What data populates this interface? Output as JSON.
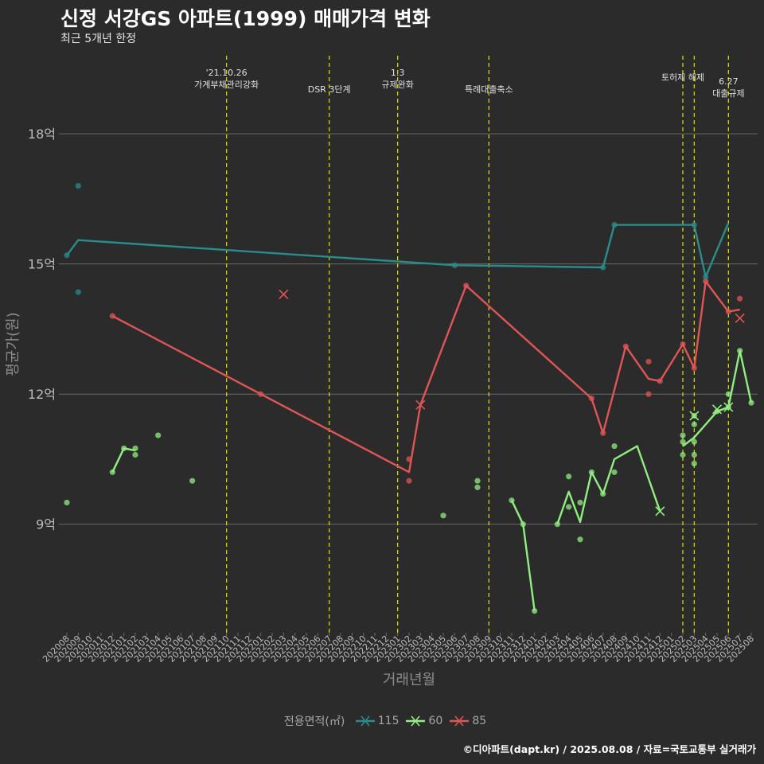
{
  "title": "신정 서강GS 아파트(1999) 매매가격 변화",
  "subtitle": "최근 5개년 한정",
  "caption": "©디아파트(dapt.kr) / 2025.08.08 / 자료=국토교통부 실거래가",
  "legend_title": "전용면적(㎡)",
  "colors": {
    "background": "#2b2b2b",
    "grid": "#6a6a6a",
    "axis_text": "#bdbdbd",
    "axis_title": "#8c8c8c",
    "event_line": "#d4d400",
    "event_text": "#e0e0e0"
  },
  "chart_data": {
    "type": "line",
    "xlabel": "거래년월",
    "ylabel": "평균가(원)",
    "ylim": [
      6.5,
      19.8
    ],
    "y_ticks": [
      {
        "value": 9,
        "label": "9억"
      },
      {
        "value": 12,
        "label": "12억"
      },
      {
        "value": 15,
        "label": "15억"
      },
      {
        "value": 18,
        "label": "18억"
      }
    ],
    "categories": [
      "202008",
      "202009",
      "202010",
      "202011",
      "202012",
      "202101",
      "202102",
      "202103",
      "202104",
      "202105",
      "202106",
      "202107",
      "202108",
      "202109",
      "202110",
      "202111",
      "202112",
      "202201",
      "202202",
      "202203",
      "202204",
      "202205",
      "202206",
      "202207",
      "202208",
      "202209",
      "202210",
      "202211",
      "202212",
      "202301",
      "202302",
      "202303",
      "202304",
      "202305",
      "202306",
      "202307",
      "202308",
      "202309",
      "202310",
      "202311",
      "202312",
      "202401",
      "202402",
      "202403",
      "202404",
      "202405",
      "202406",
      "202407",
      "202408",
      "202409",
      "202410",
      "202411",
      "202412",
      "202501",
      "202502",
      "202503",
      "202504",
      "202505",
      "202506",
      "202507",
      "202508"
    ],
    "events": [
      {
        "x": "202110",
        "label": "'21.10.26\n가계부채관리강화",
        "row": 0
      },
      {
        "x": "202207",
        "label": "DSR 3단계",
        "row": 1
      },
      {
        "x": "202301",
        "label": "1.3\n규제완화",
        "row": 0
      },
      {
        "x": "202309",
        "label": "특례대출축소",
        "row": 1
      },
      {
        "x": "202502",
        "label": "토허제 해제",
        "row": 0
      },
      {
        "x": "202503",
        "label": "",
        "row": 0
      },
      {
        "x": "202506",
        "label": "6.27\n대출규제",
        "row": 1
      }
    ],
    "series": [
      {
        "name": "115",
        "color": "#2a8c8c",
        "line": [
          [
            "202008",
            15.2
          ],
          [
            "202009",
            15.55
          ],
          [
            "202306",
            14.97
          ],
          [
            "202407",
            14.92
          ],
          [
            "202408",
            15.9
          ],
          [
            "202503",
            15.9
          ],
          [
            "202504",
            14.7
          ],
          [
            "202506",
            15.95
          ]
        ],
        "points": [
          [
            "202008",
            15.2
          ],
          [
            "202009",
            16.8
          ],
          [
            "202009",
            14.35
          ],
          [
            "202306",
            14.97
          ],
          [
            "202407",
            14.92
          ],
          [
            "202408",
            15.9
          ],
          [
            "202503",
            15.9
          ],
          [
            "202504",
            14.7
          ]
        ],
        "crosses": []
      },
      {
        "name": "60",
        "color": "#90ee80",
        "line": [
          [
            [
              "202012",
              10.2
            ],
            [
              "202101",
              10.75
            ],
            [
              "202102",
              10.7
            ]
          ],
          [
            [
              "202311",
              9.55
            ],
            [
              "202312",
              9.0
            ],
            [
              "202401",
              7.0
            ]
          ],
          [
            [
              "202403",
              9.0
            ],
            [
              "202404",
              9.75
            ],
            [
              "202405",
              9.05
            ],
            [
              "202406",
              10.2
            ],
            [
              "202407",
              9.7
            ],
            [
              "202408",
              10.5
            ],
            [
              "202410",
              10.8
            ],
            [
              "202412",
              9.3
            ]
          ],
          [
            [
              "202502",
              10.8
            ],
            [
              "202503",
              11.0
            ],
            [
              "202505",
              11.6
            ],
            [
              "202506",
              11.7
            ],
            [
              "202507",
              13.0
            ],
            [
              "202508",
              11.8
            ]
          ]
        ],
        "points": [
          [
            "202008",
            9.5
          ],
          [
            "202012",
            10.2
          ],
          [
            "202101",
            10.75
          ],
          [
            "202102",
            10.75
          ],
          [
            "202102",
            10.6
          ],
          [
            "202104",
            11.05
          ],
          [
            "202107",
            10.0
          ],
          [
            "202305",
            9.2
          ],
          [
            "202308",
            10.0
          ],
          [
            "202308",
            9.85
          ],
          [
            "202311",
            9.55
          ],
          [
            "202312",
            9.0
          ],
          [
            "202401",
            7.0
          ],
          [
            "202403",
            9.0
          ],
          [
            "202404",
            10.1
          ],
          [
            "202404",
            9.4
          ],
          [
            "202405",
            9.5
          ],
          [
            "202405",
            8.65
          ],
          [
            "202406",
            10.2
          ],
          [
            "202407",
            9.7
          ],
          [
            "202408",
            10.8
          ],
          [
            "202408",
            10.2
          ],
          [
            "202502",
            11.05
          ],
          [
            "202502",
            10.9
          ],
          [
            "202502",
            10.6
          ],
          [
            "202503",
            11.5
          ],
          [
            "202503",
            11.3
          ],
          [
            "202503",
            10.9
          ],
          [
            "202503",
            10.6
          ],
          [
            "202503",
            10.4
          ],
          [
            "202505",
            11.6
          ],
          [
            "202506",
            11.7
          ],
          [
            "202506",
            12.0
          ],
          [
            "202507",
            13.0
          ],
          [
            "202508",
            11.8
          ]
        ],
        "crosses": [
          [
            "202412",
            9.3
          ],
          [
            "202503",
            11.5
          ],
          [
            "202505",
            11.65
          ],
          [
            "202506",
            11.7
          ]
        ]
      },
      {
        "name": "85",
        "color": "#e05555",
        "line": [
          [
            "202012",
            13.8
          ],
          [
            "202201",
            12.0
          ],
          [
            "202302",
            10.2
          ],
          [
            "202303",
            11.75
          ],
          [
            "202307",
            14.5
          ],
          [
            "202406",
            11.9
          ],
          [
            "202407",
            11.1
          ],
          [
            "202409",
            13.1
          ],
          [
            "202411",
            12.35
          ],
          [
            "202412",
            12.3
          ],
          [
            "202502",
            13.15
          ],
          [
            "202503",
            12.6
          ],
          [
            "202504",
            14.6
          ],
          [
            "202506",
            13.9
          ],
          [
            "202507",
            13.95
          ]
        ],
        "points": [
          [
            "202012",
            13.8
          ],
          [
            "202201",
            12.0
          ],
          [
            "202302",
            10.5
          ],
          [
            "202302",
            10.0
          ],
          [
            "202307",
            14.5
          ],
          [
            "202406",
            11.9
          ],
          [
            "202407",
            11.1
          ],
          [
            "202409",
            13.1
          ],
          [
            "202411",
            12.75
          ],
          [
            "202411",
            12.0
          ],
          [
            "202412",
            12.3
          ],
          [
            "202502",
            13.15
          ],
          [
            "202503",
            12.6
          ],
          [
            "202504",
            14.6
          ],
          [
            "202506",
            13.9
          ],
          [
            "202507",
            14.2
          ]
        ],
        "crosses": [
          [
            "202203",
            14.3
          ],
          [
            "202303",
            11.75
          ],
          [
            "202507",
            13.75
          ]
        ]
      }
    ]
  }
}
